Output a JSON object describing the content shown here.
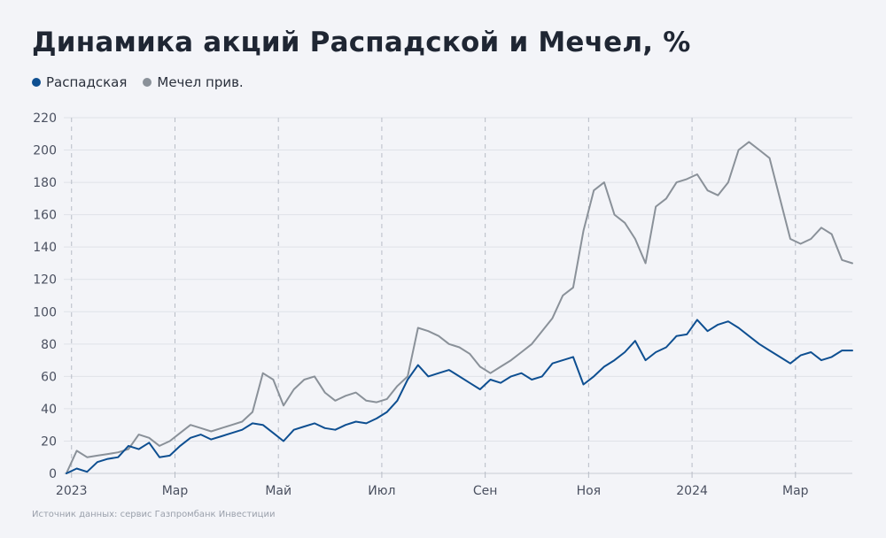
{
  "chart_data": {
    "type": "line",
    "title": "Динамика акций Распадской и Мечел, %",
    "source": "Источник данных: сервис Газпромбанк Инвестиции",
    "y_ticks": [
      "0",
      "20",
      "40",
      "60",
      "80",
      "100",
      "120",
      "140",
      "160",
      "180",
      "200",
      "220"
    ],
    "ylim": [
      0,
      220
    ],
    "x_tick_labels": [
      "2023",
      "Мар",
      "Май",
      "Июл",
      "Сен",
      "Ноя",
      "2024",
      "Мар"
    ],
    "x_tick_positions": [
      0,
      2,
      4,
      6,
      8,
      10,
      12,
      14
    ],
    "xlim": [
      -0.15,
      15.1
    ],
    "grid": true,
    "legend_position": "top-left",
    "series": [
      {
        "name": "Распадская",
        "color": "#0e4f91",
        "x": [
          -0.1,
          0.1,
          0.3,
          0.5,
          0.7,
          0.9,
          1.1,
          1.3,
          1.5,
          1.7,
          1.9,
          2.1,
          2.3,
          2.5,
          2.7,
          2.9,
          3.1,
          3.3,
          3.5,
          3.7,
          3.9,
          4.1,
          4.3,
          4.5,
          4.7,
          4.9,
          5.1,
          5.3,
          5.5,
          5.7,
          5.9,
          6.1,
          6.3,
          6.5,
          6.7,
          6.9,
          7.1,
          7.3,
          7.5,
          7.7,
          7.9,
          8.1,
          8.3,
          8.5,
          8.7,
          8.9,
          9.1,
          9.3,
          9.5,
          9.7,
          9.9,
          10.1,
          10.3,
          10.5,
          10.7,
          10.9,
          11.1,
          11.3,
          11.5,
          11.7,
          11.9,
          12.1,
          12.3,
          12.5,
          12.7,
          12.9,
          13.1,
          13.3,
          13.5,
          13.7,
          13.9,
          14.1,
          14.3,
          14.5,
          14.7,
          14.9,
          15.1
        ],
        "values": [
          0,
          3,
          1,
          7,
          9,
          10,
          17,
          15,
          19,
          10,
          11,
          17,
          22,
          24,
          21,
          23,
          25,
          27,
          31,
          30,
          25,
          20,
          27,
          29,
          31,
          28,
          27,
          30,
          32,
          31,
          34,
          38,
          45,
          58,
          67,
          60,
          62,
          64,
          60,
          56,
          52,
          58,
          56,
          60,
          62,
          58,
          60,
          68,
          70,
          72,
          55,
          60,
          66,
          70,
          75,
          82,
          70,
          75,
          78,
          85,
          86,
          95,
          88,
          92,
          94,
          90,
          85,
          80,
          76,
          72,
          68,
          73,
          75,
          70,
          72,
          76,
          76
        ]
      },
      {
        "name": "Мечел прив.",
        "color": "#8a9199",
        "x": [
          -0.1,
          0.1,
          0.3,
          0.5,
          0.7,
          0.9,
          1.1,
          1.3,
          1.5,
          1.7,
          1.9,
          2.1,
          2.3,
          2.5,
          2.7,
          2.9,
          3.1,
          3.3,
          3.5,
          3.7,
          3.9,
          4.1,
          4.3,
          4.5,
          4.7,
          4.9,
          5.1,
          5.3,
          5.5,
          5.7,
          5.9,
          6.1,
          6.3,
          6.5,
          6.7,
          6.9,
          7.1,
          7.3,
          7.5,
          7.7,
          7.9,
          8.1,
          8.3,
          8.5,
          8.7,
          8.9,
          9.1,
          9.3,
          9.5,
          9.7,
          9.9,
          10.1,
          10.3,
          10.5,
          10.7,
          10.9,
          11.1,
          11.3,
          11.5,
          11.7,
          11.9,
          12.1,
          12.3,
          12.5,
          12.7,
          12.9,
          13.1,
          13.3,
          13.5,
          13.7,
          13.9,
          14.1,
          14.3,
          14.5,
          14.7,
          14.9,
          15.1
        ],
        "values": [
          0,
          14,
          10,
          11,
          12,
          13,
          15,
          24,
          22,
          17,
          20,
          25,
          30,
          28,
          26,
          28,
          30,
          32,
          38,
          62,
          58,
          42,
          52,
          58,
          60,
          50,
          45,
          48,
          50,
          45,
          44,
          46,
          54,
          60,
          90,
          88,
          85,
          80,
          78,
          74,
          66,
          62,
          66,
          70,
          75,
          80,
          88,
          96,
          110,
          115,
          150,
          175,
          180,
          160,
          155,
          145,
          130,
          165,
          170,
          180,
          182,
          185,
          175,
          172,
          180,
          200,
          205,
          200,
          195,
          170,
          145,
          142,
          145,
          152,
          148,
          132,
          130
        ]
      }
    ]
  }
}
